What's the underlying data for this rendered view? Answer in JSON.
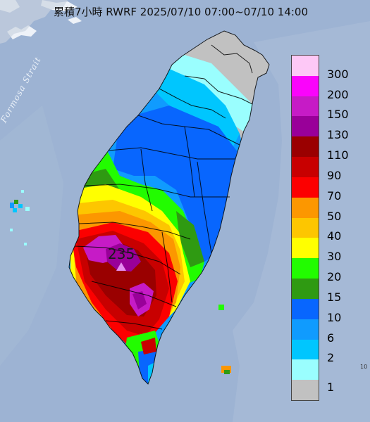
{
  "title": "累積7小時 RWRF 2025/07/10 07:00~07/10 14:00",
  "sea_label": "Formosa Strait",
  "peak": {
    "value": "235",
    "marker_color": "#e58df0"
  },
  "edge_tick": "10",
  "legend": [
    {
      "label": "300",
      "color": "#fdc8f6"
    },
    {
      "label": "200",
      "color": "#fa04fb"
    },
    {
      "label": "150",
      "color": "#c61bc6"
    },
    {
      "label": "130",
      "color": "#990099"
    },
    {
      "label": "110",
      "color": "#9a0000"
    },
    {
      "label": "90",
      "color": "#c80000"
    },
    {
      "label": "70",
      "color": "#fc0000"
    },
    {
      "label": "50",
      "color": "#fc9700"
    },
    {
      "label": "40",
      "color": "#fdc600"
    },
    {
      "label": "30",
      "color": "#ffff00"
    },
    {
      "label": "20",
      "color": "#22fc00"
    },
    {
      "label": "15",
      "color": "#2f9a12"
    },
    {
      "label": "10",
      "color": "#0866fe"
    },
    {
      "label": "6",
      "color": "#109bfe"
    },
    {
      "label": "2",
      "color": "#00c6fe"
    },
    {
      "label": "1",
      "color": "#9afefe"
    },
    {
      "label": "",
      "color": "#c1c1c1"
    }
  ]
}
